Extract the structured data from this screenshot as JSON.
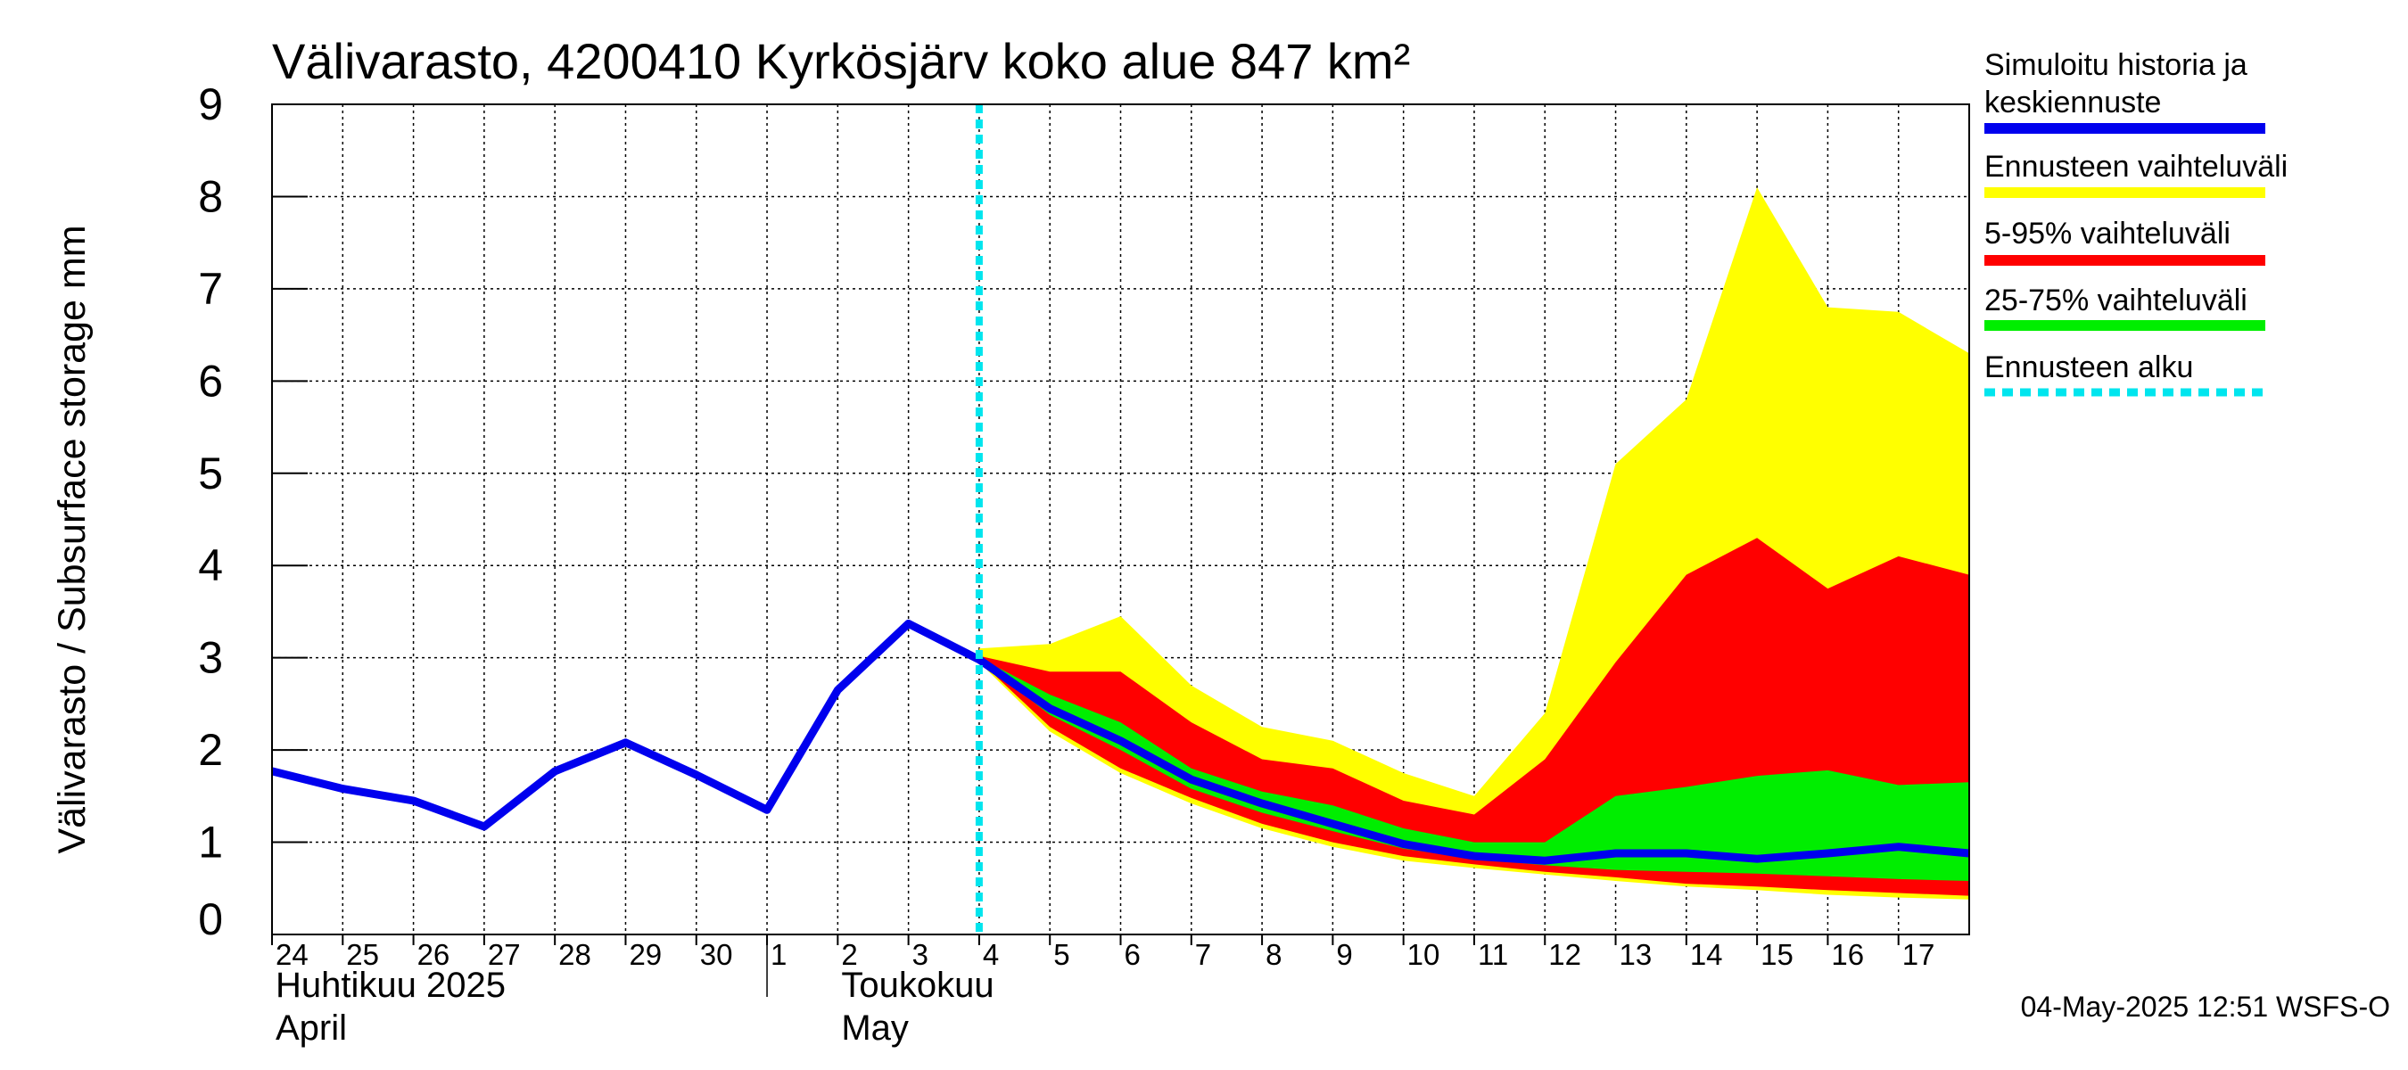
{
  "chart_data": {
    "type": "area",
    "title": "Välivarasto, 4200410 Kyrkösjärv koko alue 847 km²",
    "ylabel": "Välivarasto / Subsurface storage  mm",
    "ylim": [
      0,
      9
    ],
    "yticks": [
      0,
      1,
      2,
      3,
      4,
      5,
      6,
      7,
      8,
      9
    ],
    "grid": true,
    "x_start": "2025-04-24",
    "x_end": "2025-05-18",
    "x_tick_labels": [
      {
        "date": "2025-04-24",
        "label": "24"
      },
      {
        "date": "2025-04-25",
        "label": "25"
      },
      {
        "date": "2025-04-26",
        "label": "26"
      },
      {
        "date": "2025-04-27",
        "label": "27"
      },
      {
        "date": "2025-04-28",
        "label": "28"
      },
      {
        "date": "2025-04-29",
        "label": "29"
      },
      {
        "date": "2025-04-30",
        "label": "30"
      },
      {
        "date": "2025-05-01",
        "label": "1"
      },
      {
        "date": "2025-05-02",
        "label": "2"
      },
      {
        "date": "2025-05-03",
        "label": "3"
      },
      {
        "date": "2025-05-04",
        "label": "4"
      },
      {
        "date": "2025-05-05",
        "label": "5"
      },
      {
        "date": "2025-05-06",
        "label": "6"
      },
      {
        "date": "2025-05-07",
        "label": "7"
      },
      {
        "date": "2025-05-08",
        "label": "8"
      },
      {
        "date": "2025-05-09",
        "label": "9"
      },
      {
        "date": "2025-05-10",
        "label": "10"
      },
      {
        "date": "2025-05-11",
        "label": "11"
      },
      {
        "date": "2025-05-12",
        "label": "12"
      },
      {
        "date": "2025-05-13",
        "label": "13"
      },
      {
        "date": "2025-05-14",
        "label": "14"
      },
      {
        "date": "2025-05-15",
        "label": "15"
      },
      {
        "date": "2025-05-16",
        "label": "16"
      },
      {
        "date": "2025-05-17",
        "label": "17"
      }
    ],
    "month_labels": [
      {
        "date": "2025-04-24",
        "line1": "Huhtikuu  2025",
        "line2": "April"
      },
      {
        "date": "2025-05-02",
        "line1": "Toukokuu",
        "line2": "May"
      }
    ],
    "month_divider_date": "2025-05-01",
    "forecast_start": "2025-05-04",
    "series": [
      {
        "name": "Ennusteen vaihteluväli",
        "color": "#ffff00",
        "kind": "band",
        "x": [
          "2025-05-04",
          "2025-05-05",
          "2025-05-06",
          "2025-05-07",
          "2025-05-08",
          "2025-05-09",
          "2025-05-10",
          "2025-05-11",
          "2025-05-12",
          "2025-05-13",
          "2025-05-14",
          "2025-05-15",
          "2025-05-16",
          "2025-05-17",
          "2025-05-18"
        ],
        "upper": [
          3.1,
          3.15,
          3.45,
          2.7,
          2.25,
          2.1,
          1.75,
          1.5,
          2.4,
          5.1,
          5.8,
          8.1,
          6.8,
          6.75,
          6.3
        ],
        "lower": [
          2.95,
          2.2,
          1.75,
          1.42,
          1.15,
          0.95,
          0.8,
          0.72,
          0.65,
          0.58,
          0.52,
          0.48,
          0.43,
          0.4,
          0.38
        ]
      },
      {
        "name": "5-95% vaihteluväli",
        "color": "#ff0000",
        "kind": "band",
        "x": [
          "2025-05-04",
          "2025-05-05",
          "2025-05-06",
          "2025-05-07",
          "2025-05-08",
          "2025-05-09",
          "2025-05-10",
          "2025-05-11",
          "2025-05-12",
          "2025-05-13",
          "2025-05-14",
          "2025-05-15",
          "2025-05-16",
          "2025-05-17",
          "2025-05-18"
        ],
        "upper": [
          3.02,
          2.85,
          2.85,
          2.3,
          1.9,
          1.8,
          1.45,
          1.3,
          1.9,
          2.95,
          3.9,
          4.3,
          3.75,
          4.1,
          3.9
        ],
        "lower": [
          2.97,
          2.25,
          1.8,
          1.48,
          1.2,
          1.0,
          0.85,
          0.76,
          0.68,
          0.62,
          0.55,
          0.52,
          0.48,
          0.45,
          0.42
        ]
      },
      {
        "name": "25-75% vaihteluväli",
        "color": "#00ee00",
        "kind": "band",
        "x": [
          "2025-05-04",
          "2025-05-05",
          "2025-05-06",
          "2025-05-07",
          "2025-05-08",
          "2025-05-09",
          "2025-05-10",
          "2025-05-11",
          "2025-05-12",
          "2025-05-13",
          "2025-05-14",
          "2025-05-15",
          "2025-05-16",
          "2025-05-17",
          "2025-05-18"
        ],
        "upper": [
          3.0,
          2.6,
          2.3,
          1.8,
          1.55,
          1.4,
          1.15,
          1.0,
          1.0,
          1.5,
          1.6,
          1.72,
          1.78,
          1.62,
          1.65
        ],
        "lower": [
          2.98,
          2.38,
          2.0,
          1.58,
          1.32,
          1.12,
          0.93,
          0.82,
          0.75,
          0.7,
          0.68,
          0.66,
          0.63,
          0.6,
          0.58
        ]
      },
      {
        "name": "Simuloitu historia ja keskiennuste",
        "color": "#0000ee",
        "kind": "line",
        "x": [
          "2025-04-24",
          "2025-04-25",
          "2025-04-26",
          "2025-04-27",
          "2025-04-28",
          "2025-04-29",
          "2025-04-30",
          "2025-05-01",
          "2025-05-02",
          "2025-05-03",
          "2025-05-04",
          "2025-05-05",
          "2025-05-06",
          "2025-05-07",
          "2025-05-08",
          "2025-05-09",
          "2025-05-10",
          "2025-05-11",
          "2025-05-12",
          "2025-05-13",
          "2025-05-14",
          "2025-05-15",
          "2025-05-16",
          "2025-05-17",
          "2025-05-18"
        ],
        "y": [
          1.77,
          1.58,
          1.45,
          1.17,
          1.77,
          2.08,
          1.73,
          1.35,
          2.65,
          3.37,
          2.98,
          2.45,
          2.1,
          1.68,
          1.42,
          1.2,
          0.98,
          0.85,
          0.8,
          0.88,
          0.88,
          0.82,
          0.88,
          0.95,
          0.88
        ]
      },
      {
        "name": "Ennusteen alku",
        "color": "#00e5ee",
        "kind": "vline",
        "x": [
          "2025-05-04"
        ]
      }
    ],
    "legend": [
      {
        "label_line1": "Simuloitu historia ja",
        "label_line2": "keskiennuste",
        "color": "#0000ee",
        "style": "solid"
      },
      {
        "label_line1": "Ennusteen vaihteluväli",
        "label_line2": "",
        "color": "#ffff00",
        "style": "solid"
      },
      {
        "label_line1": "5-95% vaihteluväli",
        "label_line2": "",
        "color": "#ff0000",
        "style": "solid"
      },
      {
        "label_line1": "25-75% vaihteluväli",
        "label_line2": "",
        "color": "#00ee00",
        "style": "solid"
      },
      {
        "label_line1": "Ennusteen alku",
        "label_line2": "",
        "color": "#00e5ee",
        "style": "dashed"
      }
    ],
    "legend_position": "right"
  },
  "footer": "04-May-2025 12:51 WSFS-O"
}
